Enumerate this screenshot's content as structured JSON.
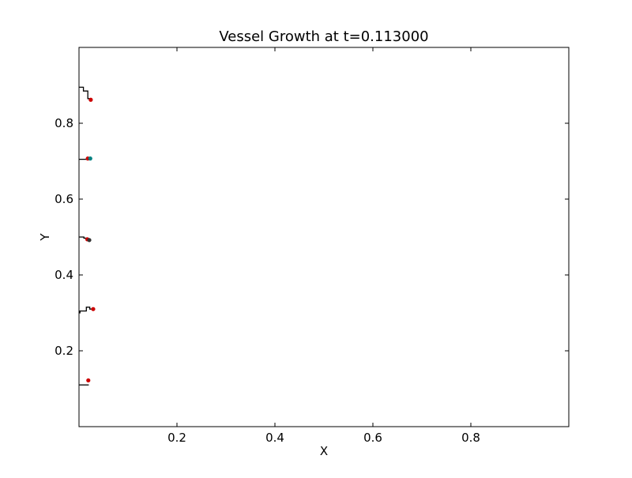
{
  "chart_data": {
    "type": "line",
    "title": "Vessel Growth at t=0.113000",
    "xlabel": "X",
    "ylabel": "Y",
    "xlim": [
      0.0,
      1.0
    ],
    "ylim": [
      0.0,
      1.0
    ],
    "grid": false,
    "xticks": [
      0.2,
      0.4,
      0.6,
      0.8
    ],
    "yticks": [
      0.2,
      0.4,
      0.6,
      0.8
    ],
    "xtick_labels": [
      "0.2",
      "0.4",
      "0.6",
      "0.8"
    ],
    "ytick_labels": [
      "0.2",
      "0.4",
      "0.6",
      "0.8"
    ],
    "line_color": "#000000",
    "tip_color": "#cc0000",
    "alt_tip_color": "#008080",
    "series": [
      {
        "x": [
          0.0,
          0.02
        ],
        "y": [
          0.11,
          0.11
        ]
      },
      {
        "x": [
          0.0,
          0.002,
          0.002,
          0.008,
          0.008,
          0.015,
          0.015,
          0.022,
          0.022,
          0.028
        ],
        "y": [
          0.3,
          0.3,
          0.305,
          0.305,
          0.305,
          0.305,
          0.315,
          0.315,
          0.31,
          0.31
        ]
      },
      {
        "x": [
          0.0,
          0.01,
          0.01,
          0.016,
          0.016,
          0.02,
          0.02
        ],
        "y": [
          0.5,
          0.5,
          0.497,
          0.497,
          0.495,
          0.495,
          0.49
        ]
      },
      {
        "x": [
          0.0,
          0.02,
          0.02,
          0.025
        ],
        "y": [
          0.705,
          0.705,
          0.707,
          0.707
        ]
      },
      {
        "x": [
          0.0,
          0.009,
          0.009,
          0.018,
          0.018,
          0.023
        ],
        "y": [
          0.895,
          0.895,
          0.885,
          0.885,
          0.865,
          0.865
        ]
      }
    ],
    "tips": [
      {
        "x": 0.019,
        "y": 0.122,
        "color": "#cc0000"
      },
      {
        "x": 0.029,
        "y": 0.31,
        "color": "#cc0000"
      },
      {
        "x": 0.017,
        "y": 0.494,
        "color": "#cc0000"
      },
      {
        "x": 0.021,
        "y": 0.492,
        "color": "#333333"
      },
      {
        "x": 0.018,
        "y": 0.707,
        "color": "#cc0000"
      },
      {
        "x": 0.023,
        "y": 0.707,
        "color": "#008080"
      },
      {
        "x": 0.024,
        "y": 0.862,
        "color": "#cc0000"
      }
    ]
  }
}
